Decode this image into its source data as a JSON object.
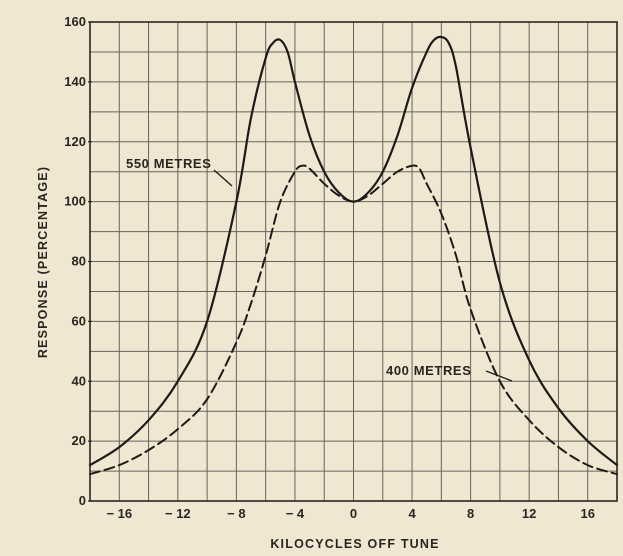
{
  "chart_data": {
    "type": "line",
    "title": "",
    "xlabel": "KILOCYCLES OFF TUNE",
    "ylabel": "RESPONSE (PERCENTAGE)",
    "xlim": [
      -18,
      18
    ],
    "ylim": [
      0,
      160
    ],
    "x_ticks": [
      -16,
      -12,
      -8,
      -4,
      0,
      4,
      8,
      12,
      16
    ],
    "x_tick_labels": [
      "− 16",
      "− 12",
      "− 8",
      "− 4",
      "0",
      "4",
      "8",
      "12",
      "16"
    ],
    "y_ticks": [
      0,
      20,
      40,
      60,
      80,
      100,
      120,
      140,
      160
    ],
    "y_tick_labels": [
      "0",
      "20",
      "40",
      "60",
      "80",
      "100",
      "120",
      "140",
      "160"
    ],
    "grid": true,
    "series": [
      {
        "name": "550 METRES",
        "style": "solid",
        "x": [
          -18,
          -16,
          -14,
          -12,
          -10,
          -8,
          -7,
          -6,
          -5.5,
          -5,
          -4.5,
          -4,
          -3,
          -2,
          -1,
          0,
          1,
          2,
          3,
          4,
          5,
          5.5,
          6,
          6.5,
          7,
          8,
          10,
          12,
          14,
          16,
          18
        ],
        "y": [
          12,
          18,
          27,
          40,
          60,
          100,
          128,
          148,
          153,
          154,
          150,
          140,
          122,
          110,
          103,
          100,
          103,
          110,
          122,
          138,
          150,
          154,
          155,
          153,
          145,
          118,
          73,
          47,
          31,
          20,
          12
        ]
      },
      {
        "name": "400 METRES",
        "style": "dashed",
        "x": [
          -18,
          -16,
          -14,
          -12,
          -10,
          -8,
          -7,
          -6,
          -5,
          -4,
          -3.5,
          -3,
          -2,
          -1,
          0,
          1,
          2,
          3,
          4,
          4.5,
          5,
          6,
          7,
          8,
          10,
          12,
          14,
          16,
          18
        ],
        "y": [
          9,
          12,
          17,
          24,
          34,
          53,
          66,
          82,
          100,
          110,
          112,
          111,
          106,
          102,
          100,
          102,
          106,
          110,
          112,
          111,
          106,
          96,
          82,
          64,
          40,
          27,
          18,
          12,
          9
        ]
      }
    ],
    "annotations": [
      {
        "text": "550 METRES",
        "series": "550 METRES"
      },
      {
        "text": "400 METRES",
        "series": "400 METRES"
      }
    ]
  }
}
